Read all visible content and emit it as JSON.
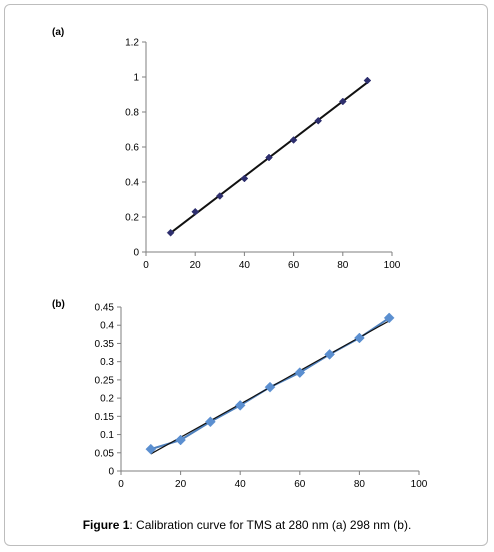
{
  "caption": {
    "lead": "Figure 1",
    "text": ": Calibration curve for TMS at 280 nm (a) 298 nm (b)."
  },
  "colors": {
    "panel_a_line": "#111111",
    "panel_a_marker": "#2e2f6e",
    "panel_b_line": "#111111",
    "panel_b_data_line": "#4f81bd",
    "panel_b_marker": "#5b8fd0"
  },
  "chart_data": [
    {
      "type": "scatter",
      "panel_label": "(a)",
      "title": "",
      "xlabel": "",
      "ylabel": "",
      "xlim": [
        0,
        100
      ],
      "ylim": [
        0,
        1.2
      ],
      "x_ticks": [
        "0",
        "20",
        "40",
        "60",
        "80",
        "100"
      ],
      "y_ticks": [
        "0",
        "0.2",
        "0.4",
        "0.6",
        "0.8",
        "1",
        "1.2"
      ],
      "grid": false,
      "legend": "none",
      "marker": "diamond",
      "trendline": "linear",
      "series": [
        {
          "x": [
            10,
            20,
            30,
            40,
            50,
            60,
            70,
            80,
            90
          ],
          "y": [
            0.11,
            0.23,
            0.32,
            0.42,
            0.54,
            0.64,
            0.75,
            0.86,
            0.98
          ]
        }
      ]
    },
    {
      "type": "scatter",
      "panel_label": "(b)",
      "title": "",
      "xlabel": "",
      "ylabel": "",
      "xlim": [
        0,
        100
      ],
      "ylim": [
        0,
        0.45
      ],
      "x_ticks": [
        "0",
        "20",
        "40",
        "60",
        "80",
        "100"
      ],
      "y_ticks": [
        "0",
        "0.05",
        "0.1",
        "0.15",
        "0.2",
        "0.25",
        "0.3",
        "0.35",
        "0.4",
        "0.45"
      ],
      "grid": false,
      "legend": "none",
      "marker": "diamond",
      "trendline": "linear",
      "series": [
        {
          "x": [
            10,
            20,
            30,
            40,
            50,
            60,
            70,
            80,
            90
          ],
          "y": [
            0.06,
            0.085,
            0.135,
            0.18,
            0.23,
            0.27,
            0.32,
            0.365,
            0.42
          ]
        }
      ]
    }
  ]
}
